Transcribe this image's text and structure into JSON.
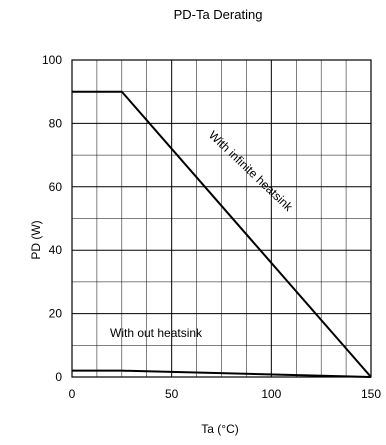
{
  "chart_data": {
    "type": "line",
    "title": "PD-Ta  Derating",
    "xlabel": "Ta  (°C)",
    "ylabel": "PD  (W)",
    "xlim": [
      0,
      150
    ],
    "ylim": [
      0,
      100
    ],
    "x_ticks": [
      "0",
      "50",
      "100",
      "150"
    ],
    "y_ticks": [
      "0",
      "20",
      "40",
      "60",
      "80",
      "100"
    ],
    "x_minor_step": 12.5,
    "y_minor_step": 10,
    "grid": true,
    "series": [
      {
        "name": "With infinite heatsink",
        "x": [
          0,
          25,
          150
        ],
        "y": [
          90,
          90,
          0
        ]
      },
      {
        "name": "With out heatsink",
        "x": [
          0,
          25,
          150
        ],
        "y": [
          2,
          2,
          0
        ]
      }
    ],
    "annotations": [
      {
        "text": "With infinite heatsink"
      },
      {
        "text": "With out heatsink"
      }
    ]
  }
}
